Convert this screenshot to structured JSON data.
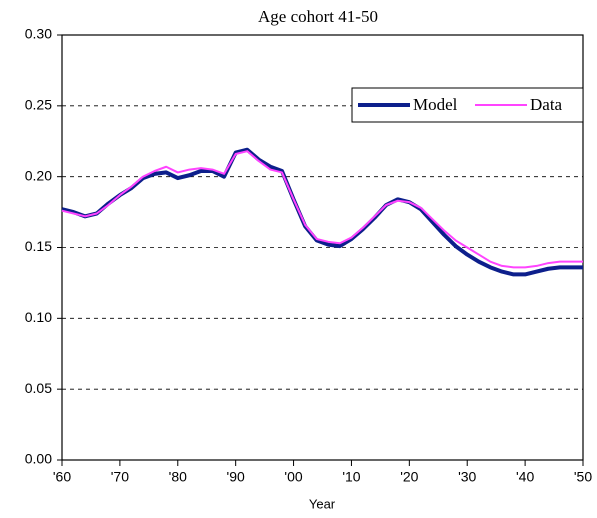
{
  "chart_data": {
    "type": "line",
    "title": "Age cohort 41-50",
    "xlabel": "Year",
    "x": [
      1960,
      1962,
      1964,
      1966,
      1968,
      1970,
      1972,
      1974,
      1976,
      1978,
      1980,
      1982,
      1984,
      1986,
      1988,
      1990,
      1992,
      1994,
      1996,
      1998,
      2000,
      2002,
      2004,
      2006,
      2008,
      2010,
      2012,
      2014,
      2016,
      2018,
      2020,
      2022,
      2024,
      2026,
      2028,
      2030,
      2032,
      2034,
      2036,
      2038,
      2040,
      2042,
      2044,
      2046,
      2048,
      2050
    ],
    "series": [
      {
        "name": "Model",
        "color": "#0d1f8c",
        "width": 4,
        "values": [
          0.177,
          0.175,
          0.172,
          0.174,
          0.181,
          0.187,
          0.192,
          0.199,
          0.202,
          0.203,
          0.199,
          0.201,
          0.204,
          0.204,
          0.2,
          0.217,
          0.219,
          0.212,
          0.207,
          0.204,
          0.184,
          0.165,
          0.155,
          0.152,
          0.151,
          0.156,
          0.163,
          0.171,
          0.18,
          0.184,
          0.182,
          0.177,
          0.168,
          0.159,
          0.151,
          0.145,
          0.14,
          0.136,
          0.133,
          0.131,
          0.131,
          0.133,
          0.135,
          0.136,
          0.136,
          0.136
        ]
      },
      {
        "name": "Data",
        "color": "#ff44ff",
        "width": 2,
        "values": [
          0.176,
          0.174,
          0.172,
          0.174,
          0.18,
          0.187,
          0.193,
          0.2,
          0.204,
          0.207,
          0.203,
          0.205,
          0.206,
          0.205,
          0.202,
          0.216,
          0.218,
          0.211,
          0.205,
          0.203,
          0.184,
          0.166,
          0.156,
          0.154,
          0.153,
          0.157,
          0.164,
          0.172,
          0.18,
          0.183,
          0.182,
          0.178,
          0.17,
          0.162,
          0.155,
          0.15,
          0.145,
          0.14,
          0.137,
          0.136,
          0.136,
          0.137,
          0.139,
          0.14,
          0.14,
          0.14
        ]
      }
    ],
    "xlim": [
      1960,
      2050
    ],
    "xticks": [
      {
        "value": 1960,
        "label": "'60"
      },
      {
        "value": 1970,
        "label": "'70"
      },
      {
        "value": 1980,
        "label": "'80"
      },
      {
        "value": 1990,
        "label": "'90"
      },
      {
        "value": 2000,
        "label": "'00"
      },
      {
        "value": 2010,
        "label": "'10"
      },
      {
        "value": 2020,
        "label": "'20"
      },
      {
        "value": 2030,
        "label": "'30"
      },
      {
        "value": 2040,
        "label": "'40"
      },
      {
        "value": 2050,
        "label": "'50"
      }
    ],
    "ylim": [
      0,
      0.3
    ],
    "yticks": [
      {
        "value": 0,
        "label": "0.00"
      },
      {
        "value": 0.05,
        "label": "0.05"
      },
      {
        "value": 0.1,
        "label": "0.10"
      },
      {
        "value": 0.15,
        "label": "0.15"
      },
      {
        "value": 0.2,
        "label": "0.20"
      },
      {
        "value": 0.25,
        "label": "0.25"
      },
      {
        "value": 0.3,
        "label": "0.30"
      }
    ],
    "grid": true,
    "legend": "upper right"
  }
}
